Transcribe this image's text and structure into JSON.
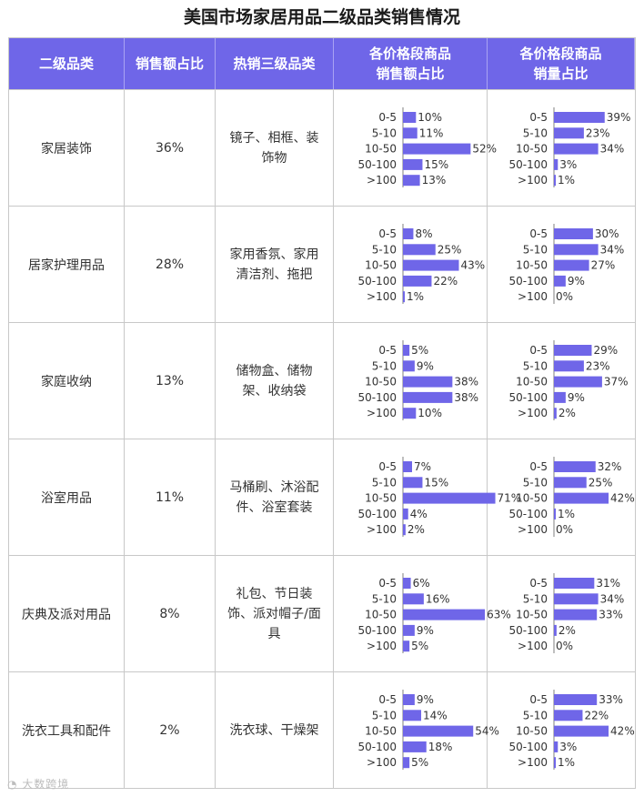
{
  "title": "美国市场家居用品二级品类销售情况",
  "headers": [
    "二级品类",
    "销售额占比",
    "热销三级品类",
    "各价格段商品\n销售额占比",
    "各价格段商品\n销量占比"
  ],
  "watermark": "大数跨境",
  "bar_color": "#6f66e8",
  "header_color": "#6f66e8",
  "price_segments": [
    "0-5",
    "5-10",
    "10-50",
    "50-100",
    ">100"
  ],
  "rows": [
    {
      "category": "家居装饰",
      "share": "36%",
      "items": "镜子、相框、装饰物"
    },
    {
      "category": "居家护理用品",
      "share": "28%",
      "items": "家用香氛、家用清洁剂、拖把"
    },
    {
      "category": "家庭收纳",
      "share": "13%",
      "items": "储物盒、储物架、收纳袋"
    },
    {
      "category": "浴室用品",
      "share": "11%",
      "items": "马桶刷、沐浴配件、浴室套装"
    },
    {
      "category": "庆典及派对用品",
      "share": "8%",
      "items": "礼包、节日装饰、派对帽子/面具"
    },
    {
      "category": "洗衣工具和配件",
      "share": "2%",
      "items": "洗衣球、干燥架"
    }
  ],
  "chart_data": [
    {
      "type": "bar",
      "orientation": "horizontal",
      "row": "家居装饰",
      "metric": "销售额占比",
      "categories": [
        "0-5",
        "5-10",
        "10-50",
        "50-100",
        ">100"
      ],
      "values": [
        10,
        11,
        52,
        15,
        13
      ],
      "unit": "%"
    },
    {
      "type": "bar",
      "orientation": "horizontal",
      "row": "家居装饰",
      "metric": "销量占比",
      "categories": [
        "0-5",
        "5-10",
        "10-50",
        "50-100",
        ">100"
      ],
      "values": [
        39,
        23,
        34,
        3,
        1
      ],
      "unit": "%"
    },
    {
      "type": "bar",
      "orientation": "horizontal",
      "row": "居家护理用品",
      "metric": "销售额占比",
      "categories": [
        "0-5",
        "5-10",
        "10-50",
        "50-100",
        ">100"
      ],
      "values": [
        8,
        25,
        43,
        22,
        1
      ],
      "unit": "%"
    },
    {
      "type": "bar",
      "orientation": "horizontal",
      "row": "居家护理用品",
      "metric": "销量占比",
      "categories": [
        "0-5",
        "5-10",
        "10-50",
        "50-100",
        ">100"
      ],
      "values": [
        30,
        34,
        27,
        9,
        0
      ],
      "unit": "%"
    },
    {
      "type": "bar",
      "orientation": "horizontal",
      "row": "家庭收纳",
      "metric": "销售额占比",
      "categories": [
        "0-5",
        "5-10",
        "10-50",
        "50-100",
        ">100"
      ],
      "values": [
        5,
        9,
        38,
        38,
        10
      ],
      "unit": "%"
    },
    {
      "type": "bar",
      "orientation": "horizontal",
      "row": "家庭收纳",
      "metric": "销量占比",
      "categories": [
        "0-5",
        "5-10",
        "10-50",
        "50-100",
        ">100"
      ],
      "values": [
        29,
        23,
        37,
        9,
        2
      ],
      "unit": "%"
    },
    {
      "type": "bar",
      "orientation": "horizontal",
      "row": "浴室用品",
      "metric": "销售额占比",
      "categories": [
        "0-5",
        "5-10",
        "10-50",
        "50-100",
        ">100"
      ],
      "values": [
        7,
        15,
        71,
        4,
        2
      ],
      "unit": "%"
    },
    {
      "type": "bar",
      "orientation": "horizontal",
      "row": "浴室用品",
      "metric": "销量占比",
      "categories": [
        "0-5",
        "5-10",
        "10-50",
        "50-100",
        ">100"
      ],
      "values": [
        32,
        25,
        42,
        1,
        0
      ],
      "unit": "%"
    },
    {
      "type": "bar",
      "orientation": "horizontal",
      "row": "庆典及派对用品",
      "metric": "销售额占比",
      "categories": [
        "0-5",
        "5-10",
        "10-50",
        "50-100",
        ">100"
      ],
      "values": [
        6,
        16,
        63,
        9,
        5
      ],
      "unit": "%"
    },
    {
      "type": "bar",
      "orientation": "horizontal",
      "row": "庆典及派对用品",
      "metric": "销量占比",
      "categories": [
        "0-5",
        "5-10",
        "10-50",
        "50-100",
        ">100"
      ],
      "values": [
        31,
        34,
        33,
        2,
        0
      ],
      "unit": "%"
    },
    {
      "type": "bar",
      "orientation": "horizontal",
      "row": "洗衣工具和配件",
      "metric": "销售额占比",
      "categories": [
        "0-5",
        "5-10",
        "10-50",
        "50-100",
        ">100"
      ],
      "values": [
        9,
        14,
        54,
        18,
        5
      ],
      "unit": "%"
    },
    {
      "type": "bar",
      "orientation": "horizontal",
      "row": "洗衣工具和配件",
      "metric": "销量占比",
      "categories": [
        "0-5",
        "5-10",
        "10-50",
        "50-100",
        ">100"
      ],
      "values": [
        33,
        22,
        42,
        3,
        1
      ],
      "unit": "%"
    }
  ]
}
